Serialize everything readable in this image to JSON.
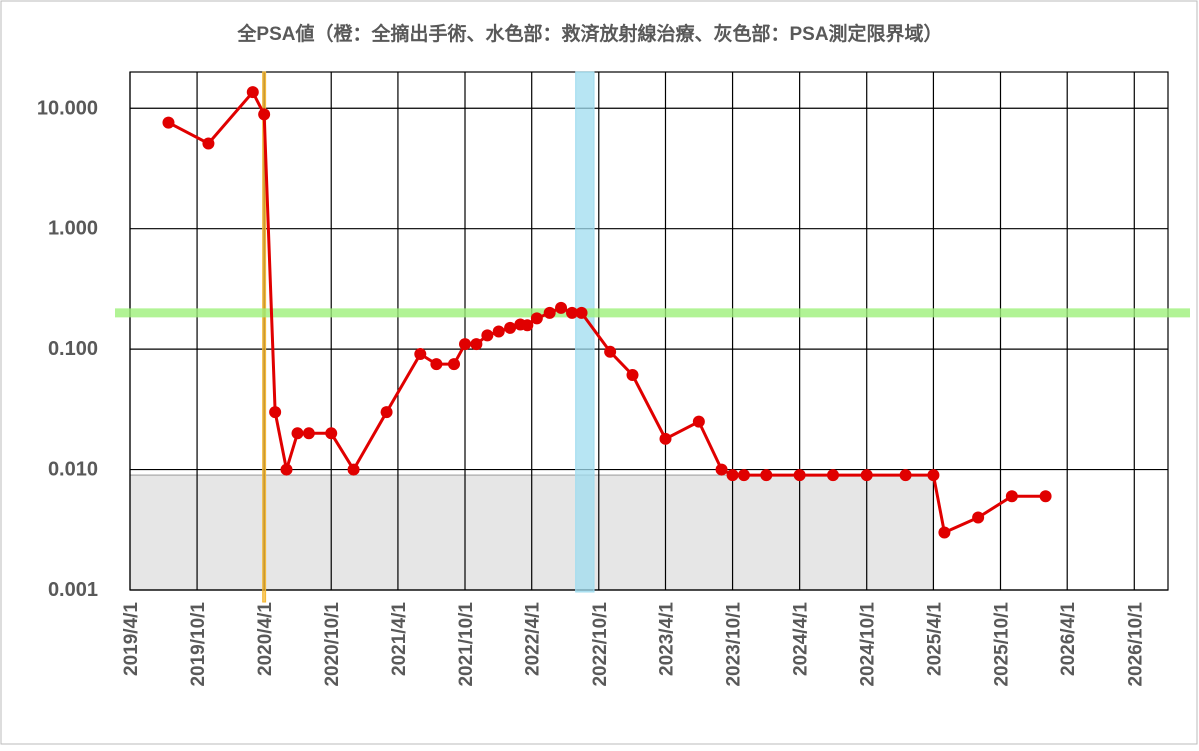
{
  "chart_data": {
    "type": "line",
    "title": "全PSA値（橙：全摘出手術、水色部：救済放射線治療、灰色部：PSA測定限界域）",
    "x": [
      "2019/7/15",
      "2019/11/1",
      "2020/3/1",
      "2020/4/1",
      "2020/5/1",
      "2020/6/1",
      "2020/7/1",
      "2020/8/1",
      "2020/10/1",
      "2020/12/1",
      "2021/3/1",
      "2021/6/1",
      "2021/7/15",
      "2021/9/1",
      "2021/10/1",
      "2021/11/1",
      "2021/12/1",
      "2022/1/1",
      "2022/2/1",
      "2022/3/1",
      "2022/3/20",
      "2022/4/15",
      "2022/5/20",
      "2022/6/20",
      "2022/7/20",
      "2022/8/15",
      "2022/11/1",
      "2023/1/1",
      "2023/4/1",
      "2023/7/1",
      "2023/9/1",
      "2023/10/1",
      "2023/11/1",
      "2024/1/1",
      "2024/4/1",
      "2024/7/1",
      "2024/10/1",
      "2025/1/15",
      "2025/4/1",
      "2025/5/1",
      "2025/8/1",
      "2025/11/1",
      "2026/2/1"
    ],
    "series": [
      {
        "name": "PSA",
        "color": "#e00000",
        "values": [
          7.6,
          5.1,
          13.6,
          8.9,
          0.03,
          0.01,
          0.02,
          0.02,
          0.02,
          0.01,
          0.03,
          0.091,
          0.075,
          0.075,
          0.11,
          0.11,
          0.13,
          0.14,
          0.15,
          0.16,
          0.158,
          0.18,
          0.2,
          0.22,
          0.2,
          0.2,
          0.095,
          0.061,
          0.018,
          0.025,
          0.01,
          0.009,
          0.009,
          0.009,
          0.009,
          0.009,
          0.009,
          0.009,
          0.009,
          0.003,
          0.004,
          0.006,
          0.006
        ]
      }
    ],
    "xlim": [
      "2019/4/1",
      "2027/1/1"
    ],
    "xticks": [
      "2019/4/1",
      "2019/10/1",
      "2020/4/1",
      "2020/10/1",
      "2021/4/1",
      "2021/10/1",
      "2022/4/1",
      "2022/10/1",
      "2023/4/1",
      "2023/10/1",
      "2024/4/1",
      "2024/10/1",
      "2025/4/1",
      "2025/10/1",
      "2026/4/1",
      "2026/10/1"
    ],
    "ylim": [
      0.001,
      20
    ],
    "yticks": [
      {
        "value": 0.001,
        "label": "0.001"
      },
      {
        "value": 0.01,
        "label": "0.010"
      },
      {
        "value": 0.1,
        "label": "0.100"
      },
      {
        "value": 1,
        "label": "1.000"
      },
      {
        "value": 10,
        "label": "10.000"
      }
    ],
    "log_y": true,
    "grid": true,
    "x_bands": [
      {
        "from": "2020/3/28",
        "to": "2020/4/5",
        "color": "#f5b731"
      },
      {
        "from": "2022/7/30",
        "to": "2022/9/18",
        "color": "#9fdcef"
      }
    ],
    "y_line": {
      "value": 0.2,
      "color": "#9ef07a"
    },
    "region": {
      "x": [
        "2019/4/1",
        "2025/4/1"
      ],
      "y": [
        0.001,
        0.009
      ],
      "color": "#e6e6e6"
    }
  }
}
